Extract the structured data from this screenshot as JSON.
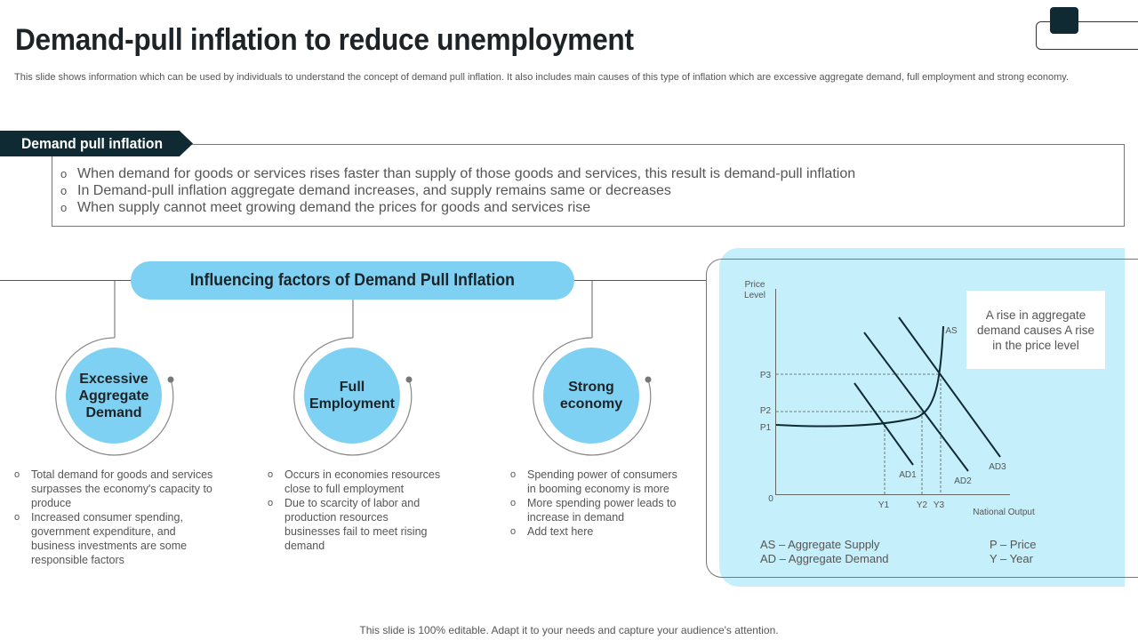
{
  "title": "Demand-pull inflation to reduce unemployment",
  "subtitle": "This slide shows information which can be used by individuals to understand the concept of demand pull inflation. It also includes main causes of this type  of inflation which are excessive aggregate demand, full employment and strong economy.",
  "definition": {
    "label": "Demand pull inflation",
    "points": [
      "When demand for goods or services rises faster than supply of those goods and services, this result is demand-pull inflation",
      "In Demand-pull inflation aggregate demand increases, and supply remains same or decreases",
      "When supply cannot meet growing demand the prices for goods and services rise"
    ]
  },
  "factors": {
    "heading": "Influencing factors of Demand Pull Inflation",
    "items": [
      {
        "name": "Excessive Aggregate Demand",
        "points": [
          "Total demand for goods and services surpasses the economy's capacity to produce",
          "Increased consumer spending, government  expenditure, and business investments are some responsible factors"
        ]
      },
      {
        "name": "Full Employment",
        "points": [
          "Occurs in economies resources close to full employment",
          "Due to scarcity of labor and production resources businesses fail to meet rising demand"
        ]
      },
      {
        "name": "Strong economy",
        "points": [
          "Spending power of consumers in booming economy is more",
          "More spending power leads to increase in demand",
          "Add text here"
        ]
      }
    ]
  },
  "chart": {
    "note": "A rise in aggregate demand causes A rise in the price level",
    "legend": {
      "as": "AS – Aggregate  Supply",
      "ad": "AD – Aggregate  Demand",
      "p": "P – Price",
      "y": "Y – Year"
    },
    "y_axis_label_line1": "Price",
    "y_axis_label_line2": "Level",
    "x_axis_label": "National Output",
    "origin_label": "0",
    "curve_labels": {
      "as": "AS",
      "ad1": "AD1",
      "ad2": "AD2",
      "ad3": "AD3"
    },
    "price_ticks": [
      "P3",
      "P2",
      "P1"
    ],
    "output_ticks": [
      "Y1",
      "Y2",
      "Y3"
    ]
  },
  "footer": "This slide is 100% editable. Adapt it to your needs and capture your audience's attention.",
  "colors": {
    "dark": "#0f2a33",
    "accent": "#7ed1f3",
    "panel": "#c5f0fb"
  }
}
